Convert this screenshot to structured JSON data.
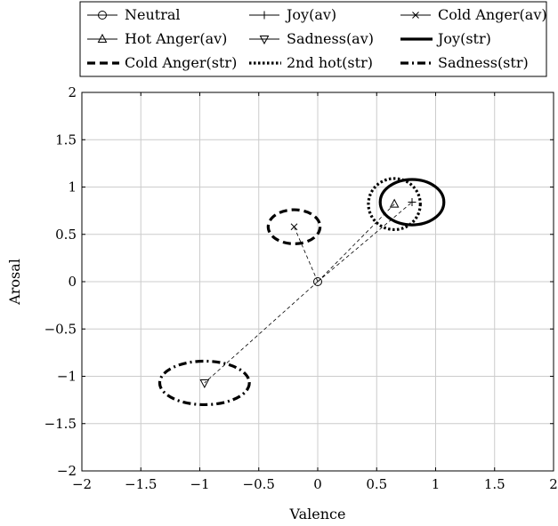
{
  "chart_data": {
    "type": "scatter",
    "title": "",
    "xlabel": "Valence",
    "ylabel": "Arosal",
    "xlim": [
      -2,
      2
    ],
    "ylim": [
      -2,
      2
    ],
    "grid": true,
    "legend_position": "top",
    "x_ticks": [
      -2,
      -1.5,
      -1,
      -0.5,
      0,
      0.5,
      1,
      1.5,
      2
    ],
    "y_ticks": [
      -2,
      -1.5,
      -1,
      -0.5,
      0,
      0.5,
      1,
      1.5,
      2
    ],
    "x_tick_labels": [
      "−2",
      "−1.5",
      "−1",
      "−0.5",
      "0",
      "0.5",
      "1",
      "1.5",
      "2"
    ],
    "y_tick_labels": [
      "−2",
      "−1.5",
      "−1",
      "−0.5",
      "0",
      "0.5",
      "1",
      "1.5",
      "2"
    ],
    "points": [
      {
        "name": "Neutral",
        "marker": "circle",
        "x": 0,
        "y": 0
      },
      {
        "name": "Joy(av)",
        "marker": "plus",
        "x": 0.8,
        "y": 0.84
      },
      {
        "name": "Cold Anger(av)",
        "marker": "cross",
        "x": -0.2,
        "y": 0.58
      },
      {
        "name": "Hot Anger(av)",
        "marker": "triangle-up",
        "x": 0.65,
        "y": 0.82
      },
      {
        "name": "Sadness(av)",
        "marker": "triangle-down",
        "x": -0.96,
        "y": -1.07
      }
    ],
    "ellipses": [
      {
        "name": "Joy(str)",
        "style": "solid",
        "cx": 0.8,
        "cy": 0.84,
        "rx": 0.27,
        "ry": 0.24
      },
      {
        "name": "Cold Anger(str)",
        "style": "dashed",
        "cx": -0.2,
        "cy": 0.58,
        "rx": 0.22,
        "ry": 0.18
      },
      {
        "name": "2nd hot(str)",
        "style": "dotted",
        "cx": 0.65,
        "cy": 0.82,
        "rx": 0.22,
        "ry": 0.27
      },
      {
        "name": "Sadness(str)",
        "style": "dashdot",
        "cx": -0.96,
        "cy": -1.07,
        "rx": 0.38,
        "ry": 0.23
      }
    ],
    "connectors": [
      {
        "from": "Neutral",
        "to": "Joy(av)"
      },
      {
        "from": "Neutral",
        "to": "Hot Anger(av)"
      },
      {
        "from": "Neutral",
        "to": "Cold Anger(av)"
      },
      {
        "from": "Neutral",
        "to": "Sadness(av)"
      }
    ],
    "legend": [
      {
        "label": "Neutral",
        "kind": "marker",
        "marker": "circle"
      },
      {
        "label": "Joy(av)",
        "kind": "marker",
        "marker": "plus"
      },
      {
        "label": "Cold Anger(av)",
        "kind": "marker",
        "marker": "cross"
      },
      {
        "label": "Hot Anger(av)",
        "kind": "marker",
        "marker": "triangle-up"
      },
      {
        "label": "Sadness(av)",
        "kind": "marker",
        "marker": "triangle-down"
      },
      {
        "label": "Joy(str)",
        "kind": "line",
        "style": "solid"
      },
      {
        "label": "Cold Anger(str)",
        "kind": "line",
        "style": "dashed"
      },
      {
        "label": "2nd hot(str)",
        "kind": "line",
        "style": "dotted"
      },
      {
        "label": "Sadness(str)",
        "kind": "line",
        "style": "dashdot"
      }
    ]
  }
}
